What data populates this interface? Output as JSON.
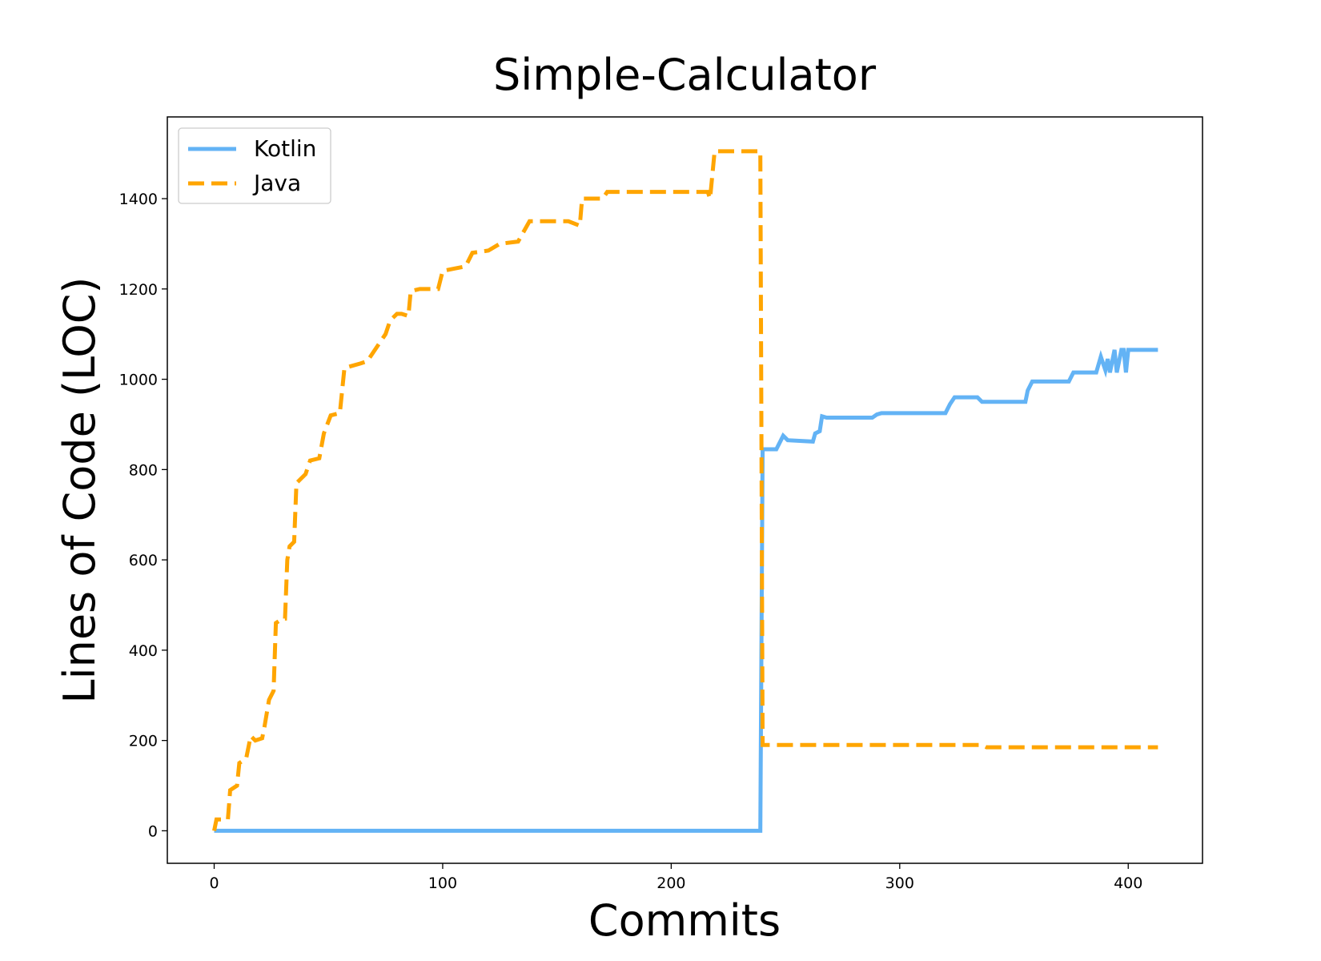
{
  "chart_data": {
    "type": "line",
    "title": "Simple-Calculator",
    "x_label": "Commits",
    "y_label": "Lines of Code (LOC)",
    "xlim": [
      -20.5,
      432.5
    ],
    "ylim": [
      -72,
      1581
    ],
    "xticks": [
      0,
      100,
      200,
      300,
      400
    ],
    "yticks": [
      0,
      200,
      400,
      600,
      800,
      1000,
      1200,
      1400
    ],
    "grid": false,
    "legend": "upper left",
    "series": [
      {
        "name": "Kotlin",
        "color": "#63b3f5",
        "dash": "solid",
        "x": [
          0,
          239,
          240,
          246,
          249,
          251,
          262,
          263,
          265,
          266,
          268,
          288,
          290,
          292,
          320,
          322,
          324,
          334,
          336,
          355,
          356,
          358,
          374,
          376,
          386,
          388,
          390,
          391,
          392,
          394,
          395,
          397,
          398,
          399,
          400,
          413
        ],
        "values": [
          0,
          0,
          845,
          845,
          875,
          865,
          862,
          880,
          885,
          918,
          915,
          915,
          922,
          925,
          925,
          945,
          960,
          960,
          950,
          950,
          975,
          995,
          995,
          1015,
          1015,
          1050,
          1020,
          1045,
          1015,
          1065,
          1015,
          1065,
          1065,
          1015,
          1065,
          1065
        ]
      },
      {
        "name": "Java",
        "color": "#ffa500",
        "dash": "dashed",
        "x": [
          0,
          1,
          6,
          7,
          10,
          11,
          14,
          16,
          18,
          21,
          22,
          24,
          26,
          27,
          30,
          31,
          32,
          33,
          35,
          36,
          38,
          40,
          42,
          46,
          48,
          51,
          55,
          57,
          64,
          67,
          75,
          77,
          80,
          82,
          85,
          86,
          90,
          98,
          100,
          105,
          110,
          113,
          120,
          125,
          133,
          138,
          155,
          160,
          161,
          170,
          172,
          216,
          217,
          219,
          239,
          240,
          260,
          300,
          336,
          338,
          413
        ],
        "values": [
          0,
          25,
          25,
          90,
          100,
          150,
          160,
          210,
          200,
          205,
          230,
          290,
          310,
          460,
          470,
          470,
          600,
          630,
          640,
          770,
          780,
          790,
          820,
          825,
          880,
          920,
          925,
          1025,
          1035,
          1040,
          1100,
          1130,
          1145,
          1145,
          1140,
          1195,
          1200,
          1200,
          1240,
          1245,
          1250,
          1280,
          1285,
          1300,
          1305,
          1350,
          1350,
          1340,
          1400,
          1400,
          1415,
          1415,
          1400,
          1505,
          1505,
          190,
          190,
          190,
          190,
          185,
          185
        ]
      }
    ]
  }
}
